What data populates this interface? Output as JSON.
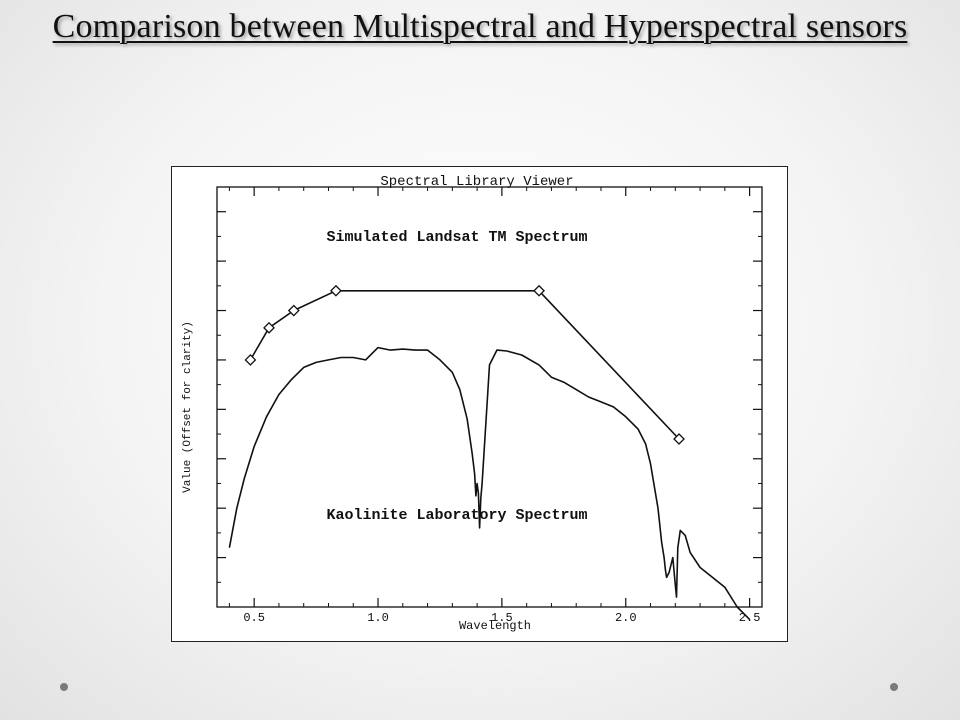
{
  "slide": {
    "title": "Comparison between Multispectral and Hyperspectral sensors"
  },
  "colors": {
    "ink": "#111111",
    "background": "#f4f4f4",
    "nav_dot": "#7a7a7a"
  },
  "chart_data": {
    "type": "line",
    "title": "Spectral Library Viewer",
    "xlabel": "Wavelength",
    "ylabel": "Value (Offset for clarity)",
    "xlim": [
      0.35,
      2.55
    ],
    "ylim": [
      0,
      8.5
    ],
    "x_ticks": [
      0.5,
      1.0,
      1.5,
      2.0,
      2.5
    ],
    "x_tick_labels": [
      "0.5",
      "1.0",
      "1.5",
      "2.0",
      "2.5"
    ],
    "y_ticks": [
      1,
      2,
      3,
      4,
      5,
      6,
      7,
      8
    ],
    "y_tick_labels_shown": false,
    "grid": false,
    "annotations": [
      {
        "text": "Simulated Landsat TM Spectrum",
        "x": 1.45,
        "y": 7.4
      },
      {
        "text": "Kaolinite Laboratory Spectrum",
        "x": 1.45,
        "y": 1.95
      }
    ],
    "series": [
      {
        "name": "Simulated Landsat TM Spectrum",
        "marker": "diamond",
        "x": [
          0.485,
          0.56,
          0.66,
          0.83,
          1.65,
          2.215
        ],
        "y": [
          5.0,
          5.65,
          6.0,
          6.4,
          6.4,
          3.4
        ]
      },
      {
        "name": "Kaolinite Laboratory Spectrum",
        "marker": "none",
        "x": [
          0.4,
          0.43,
          0.46,
          0.5,
          0.55,
          0.6,
          0.65,
          0.7,
          0.75,
          0.8,
          0.85,
          0.9,
          0.95,
          1.0,
          1.05,
          1.1,
          1.15,
          1.2,
          1.25,
          1.3,
          1.33,
          1.36,
          1.38,
          1.39,
          1.395,
          1.4,
          1.405,
          1.41,
          1.415,
          1.42,
          1.45,
          1.48,
          1.52,
          1.58,
          1.65,
          1.7,
          1.75,
          1.8,
          1.85,
          1.9,
          1.95,
          2.0,
          2.05,
          2.08,
          2.1,
          2.13,
          2.145,
          2.155,
          2.16,
          2.165,
          2.175,
          2.19,
          2.2,
          2.205,
          2.21,
          2.22,
          2.24,
          2.26,
          2.3,
          2.35,
          2.4,
          2.45,
          2.5
        ],
        "y": [
          1.2,
          2.0,
          2.6,
          3.25,
          3.85,
          4.3,
          4.6,
          4.85,
          4.95,
          5.0,
          5.05,
          5.05,
          5.0,
          5.25,
          5.2,
          5.22,
          5.2,
          5.2,
          5.0,
          4.75,
          4.4,
          3.8,
          3.1,
          2.7,
          2.25,
          2.5,
          2.3,
          1.6,
          2.2,
          2.5,
          4.9,
          5.2,
          5.18,
          5.1,
          4.9,
          4.65,
          4.55,
          4.4,
          4.25,
          4.15,
          4.05,
          3.85,
          3.6,
          3.3,
          2.9,
          2.0,
          1.3,
          1.0,
          0.75,
          0.6,
          0.7,
          1.0,
          0.45,
          0.2,
          1.2,
          1.55,
          1.45,
          1.1,
          0.8,
          0.6,
          0.4,
          0.0,
          -0.25
        ]
      }
    ]
  }
}
